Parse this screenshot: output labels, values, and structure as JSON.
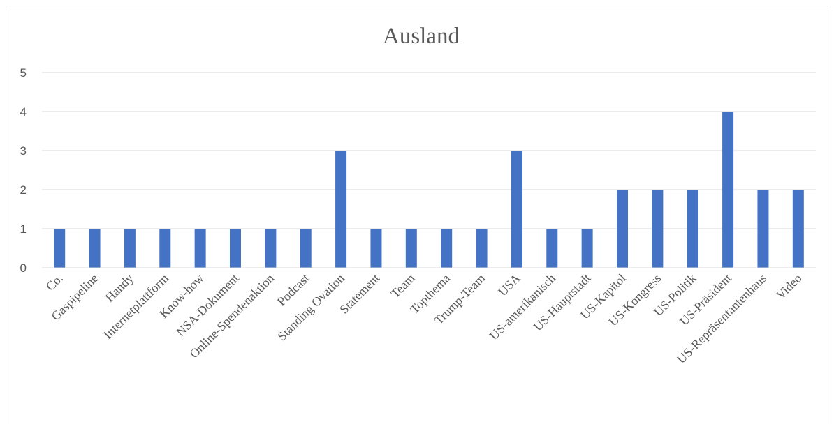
{
  "chart_data": {
    "type": "bar",
    "title": "Ausland",
    "xlabel": "",
    "ylabel": "",
    "ylim": [
      0,
      5
    ],
    "yticks": [
      0,
      1,
      2,
      3,
      4,
      5
    ],
    "grid": true,
    "legend": "none",
    "bar_color": "#4472C4",
    "categories": [
      "Co.",
      "Gaspipeline",
      "Handy",
      "Internetplattform",
      "Know-how",
      "NSA-Dokument",
      "Online-Spendenaktion",
      "Podcast",
      "Standing Ovation",
      "Statement",
      "Team",
      "Topthema",
      "Trump-Team",
      "USA",
      "US-amerikanisch",
      "US-Hauptstadt",
      "US-Kapitol",
      "US-Kongress",
      "US-Politik",
      "US-Präsident",
      "US-Repräsentantenhaus",
      "Video"
    ],
    "values": [
      1,
      1,
      1,
      1,
      1,
      1,
      1,
      1,
      3,
      1,
      1,
      1,
      1,
      3,
      1,
      1,
      2,
      2,
      2,
      4,
      2,
      2
    ]
  }
}
